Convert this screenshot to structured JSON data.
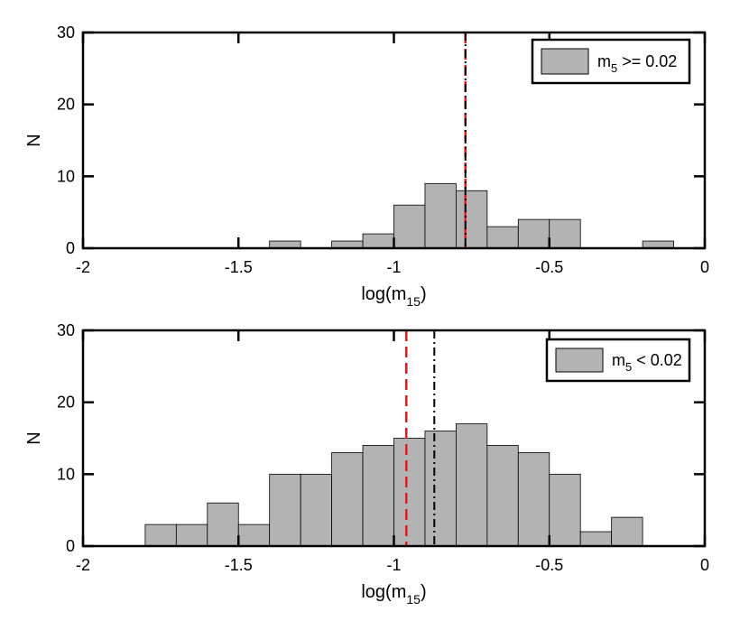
{
  "chart_data": [
    {
      "type": "bar",
      "title": "",
      "xlabel": "log(m15)",
      "xlabel_base": "log(m",
      "xlabel_sub": "15",
      "xlabel_close": ")",
      "ylabel": "N",
      "xlim": [
        -2,
        0
      ],
      "ylim": [
        0,
        30
      ],
      "xticks": [
        -2,
        -1.5,
        -1,
        -0.5,
        0
      ],
      "xtick_labels": [
        "-2",
        "-1.5",
        "-1",
        "-0.5",
        "0"
      ],
      "yticks": [
        0,
        10,
        20,
        30
      ],
      "ytick_labels": [
        "0",
        "10",
        "20",
        "30"
      ],
      "bin_width": 0.1,
      "bins": [
        {
          "start": -1.4,
          "count": 1
        },
        {
          "start": -1.2,
          "count": 1
        },
        {
          "start": -1.1,
          "count": 2
        },
        {
          "start": -1.0,
          "count": 6
        },
        {
          "start": -0.9,
          "count": 9
        },
        {
          "start": -0.8,
          "count": 8
        },
        {
          "start": -0.7,
          "count": 3
        },
        {
          "start": -0.6,
          "count": 4
        },
        {
          "start": -0.5,
          "count": 4
        },
        {
          "start": -0.2,
          "count": 1
        }
      ],
      "ref_lines": [
        {
          "name": "red-dashed-line",
          "x": -0.77,
          "color": "#e8191c",
          "style": "dashed"
        },
        {
          "name": "black-dashdot-line",
          "x": -0.77,
          "color": "#000000",
          "style": "dashdot"
        }
      ],
      "legend": {
        "base": "m",
        "sub": "5",
        "rest": " >= 0.02",
        "label": "m5 >= 0.02",
        "position": "top-right"
      },
      "bar_color": "#b3b3b3"
    },
    {
      "type": "bar",
      "title": "",
      "xlabel": "log(m15)",
      "xlabel_base": "log(m",
      "xlabel_sub": "15",
      "xlabel_close": ")",
      "ylabel": "N",
      "xlim": [
        -2,
        0
      ],
      "ylim": [
        0,
        30
      ],
      "xticks": [
        -2,
        -1.5,
        -1,
        -0.5,
        0
      ],
      "xtick_labels": [
        "-2",
        "-1.5",
        "-1",
        "-0.5",
        "0"
      ],
      "yticks": [
        0,
        10,
        20,
        30
      ],
      "ytick_labels": [
        "0",
        "10",
        "20",
        "30"
      ],
      "bin_width": 0.1,
      "bins": [
        {
          "start": -1.8,
          "count": 3
        },
        {
          "start": -1.7,
          "count": 3
        },
        {
          "start": -1.6,
          "count": 6
        },
        {
          "start": -1.5,
          "count": 3
        },
        {
          "start": -1.4,
          "count": 10
        },
        {
          "start": -1.3,
          "count": 10
        },
        {
          "start": -1.2,
          "count": 13
        },
        {
          "start": -1.1,
          "count": 14
        },
        {
          "start": -1.0,
          "count": 15
        },
        {
          "start": -0.9,
          "count": 16
        },
        {
          "start": -0.8,
          "count": 17
        },
        {
          "start": -0.7,
          "count": 14
        },
        {
          "start": -0.6,
          "count": 13
        },
        {
          "start": -0.5,
          "count": 10
        },
        {
          "start": -0.4,
          "count": 2
        },
        {
          "start": -0.3,
          "count": 4
        }
      ],
      "ref_lines": [
        {
          "name": "red-dashed-line",
          "x": -0.96,
          "color": "#e8191c",
          "style": "dashed"
        },
        {
          "name": "black-dashdot-line",
          "x": -0.87,
          "color": "#000000",
          "style": "dashdot"
        }
      ],
      "legend": {
        "base": "m",
        "sub": "5",
        "rest": " < 0.02",
        "label": "m5 < 0.02",
        "position": "top-right"
      },
      "bar_color": "#b3b3b3"
    }
  ]
}
